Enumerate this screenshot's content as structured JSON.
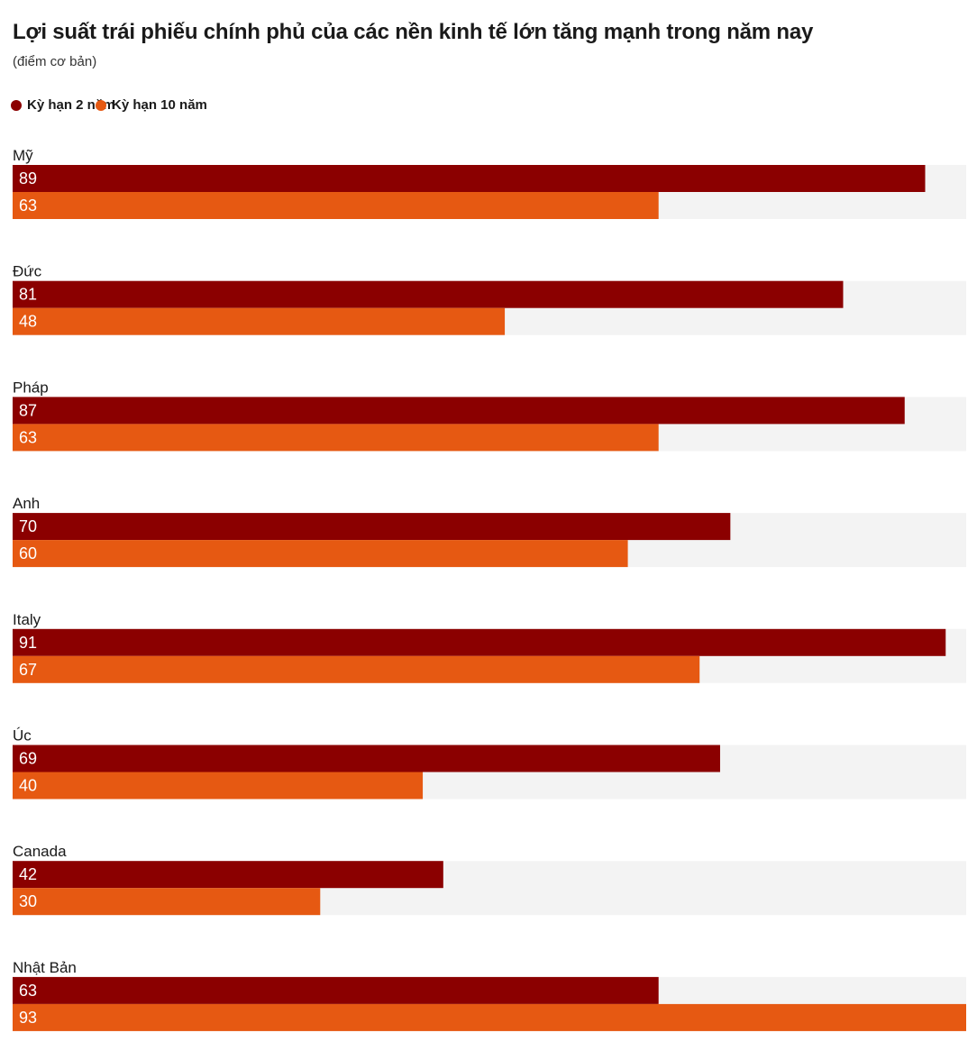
{
  "title": "Lợi suất trái phiếu chính phủ của các nền kinh tế lớn tăng mạnh trong năm nay",
  "subtitle": "(điểm cơ bản)",
  "colors": {
    "series0": "#8b0000",
    "series1": "#e65912",
    "track": "#f3f3f3",
    "bar_label": "#ffffff",
    "category_label": "#1a1a1a"
  },
  "legend": [
    {
      "name": "Kỳ hạn 2 năm",
      "color": "#8b0000"
    },
    {
      "name": "Kỳ hạn 10 năm",
      "color": "#e65912"
    }
  ],
  "chart_data": {
    "type": "bar",
    "orientation": "horizontal",
    "title": "Lợi suất trái phiếu chính phủ của các nền kinh tế lớn tăng mạnh trong năm nay",
    "subtitle": "(điểm cơ bản)",
    "categories": [
      "Mỹ",
      "Đức",
      "Pháp",
      "Anh",
      "Italy",
      "Úc",
      "Canada",
      "Nhật Bản"
    ],
    "series": [
      {
        "name": "Kỳ hạn 2 năm",
        "values": [
          89,
          81,
          87,
          70,
          91,
          69,
          42,
          63
        ]
      },
      {
        "name": "Kỳ hạn 10 năm",
        "values": [
          63,
          48,
          63,
          60,
          67,
          40,
          30,
          93
        ]
      }
    ],
    "xlim": [
      0,
      93
    ],
    "grid": false,
    "legend_position": "top-left"
  }
}
